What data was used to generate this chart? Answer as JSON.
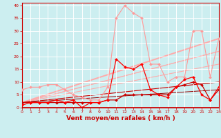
{
  "background_color": "#cceef0",
  "grid_color": "#ffffff",
  "x_label": "Vent moyen/en rafales ( km/h )",
  "x_ticks": [
    0,
    1,
    2,
    3,
    4,
    5,
    6,
    7,
    8,
    9,
    10,
    11,
    12,
    13,
    14,
    15,
    16,
    17,
    18,
    19,
    20,
    21,
    22,
    23
  ],
  "y_ticks": [
    0,
    5,
    10,
    15,
    20,
    25,
    30,
    35,
    40
  ],
  "xlim": [
    0,
    23
  ],
  "ylim": [
    0,
    41
  ],
  "line_pink_heavy": {
    "x": [
      0,
      1,
      2,
      3,
      4,
      5,
      6,
      7,
      8,
      9,
      10,
      11,
      12,
      13,
      14,
      15,
      16,
      17,
      18,
      19,
      20,
      21,
      22,
      23
    ],
    "y": [
      7,
      8,
      8,
      9,
      9,
      7,
      5,
      4,
      3,
      3,
      8,
      35,
      40,
      37,
      35,
      17,
      17,
      10,
      12,
      12,
      30,
      30,
      12,
      27
    ],
    "color": "#ff9999",
    "lw": 0.8,
    "marker": "D",
    "ms": 2.0
  },
  "line_dark_red": {
    "x": [
      0,
      1,
      2,
      3,
      4,
      5,
      6,
      7,
      8,
      9,
      10,
      11,
      12,
      13,
      14,
      15,
      16,
      17,
      18,
      19,
      20,
      21,
      22,
      23
    ],
    "y": [
      2,
      2,
      2,
      2,
      2,
      2,
      2,
      2,
      2,
      2,
      3,
      3,
      5,
      5,
      5,
      5,
      5,
      5,
      8,
      9,
      10,
      9,
      3,
      7
    ],
    "color": "#cc0000",
    "lw": 0.9,
    "marker": "D",
    "ms": 2.0
  },
  "line_bright_red": {
    "x": [
      0,
      1,
      2,
      3,
      4,
      5,
      6,
      7,
      8,
      9,
      10,
      11,
      12,
      13,
      14,
      15,
      16,
      17,
      18,
      19,
      20,
      21,
      22,
      23
    ],
    "y": [
      1,
      2,
      2,
      2,
      3,
      2,
      3,
      0,
      2,
      2,
      3,
      19,
      16,
      15,
      17,
      7,
      5,
      4,
      8,
      11,
      12,
      5,
      3,
      8
    ],
    "color": "#ff0000",
    "lw": 0.9,
    "marker": "D",
    "ms": 2.0
  },
  "trend_lines": [
    {
      "x": [
        0,
        23
      ],
      "y": [
        2,
        27
      ],
      "color": "#ffaaaa",
      "lw": 1.4
    },
    {
      "x": [
        0,
        23
      ],
      "y": [
        2,
        22
      ],
      "color": "#ffaaaa",
      "lw": 1.0
    },
    {
      "x": [
        0,
        23
      ],
      "y": [
        2,
        17
      ],
      "color": "#ffaaaa",
      "lw": 0.8
    },
    {
      "x": [
        0,
        23
      ],
      "y": [
        2,
        10
      ],
      "color": "#cc0000",
      "lw": 0.8
    },
    {
      "x": [
        0,
        23
      ],
      "y": [
        2,
        7
      ],
      "color": "#990000",
      "lw": 0.7
    }
  ],
  "tick_label_color": "#cc0000",
  "axis_label_color": "#cc0000",
  "tick_fontsize": 4.5,
  "xlabel_fontsize": 6.5
}
